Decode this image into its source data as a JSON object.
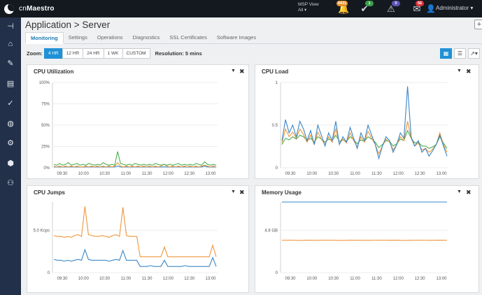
{
  "header": {
    "brand_prefix": "cn",
    "brand_name": "Maestro",
    "msp_view": "MSP View",
    "msp_sub": "All ▾",
    "badges": [
      {
        "icon": "bell-icon",
        "count": "6431",
        "color": "#e8912d"
      },
      {
        "icon": "check-circle-icon",
        "count": "1",
        "color": "#3a9e4a"
      },
      {
        "icon": "alert-circle-icon",
        "count": "0",
        "color": "#5b52b3"
      },
      {
        "icon": "inbox-icon",
        "count": "56",
        "color": "#d9343a"
      }
    ],
    "user": "Administrator ▾"
  },
  "sidebar": {
    "items": [
      {
        "icon": "pin-icon"
      },
      {
        "icon": "home-icon"
      },
      {
        "icon": "wrench-icon"
      },
      {
        "icon": "document-icon"
      },
      {
        "icon": "clipboard-check-icon"
      },
      {
        "icon": "globe-icon"
      },
      {
        "icon": "gear-icon"
      },
      {
        "icon": "cubes-icon"
      },
      {
        "icon": "users-icon"
      }
    ]
  },
  "page": {
    "title": "Application > Server",
    "tabs": [
      "Monitoring",
      "Settings",
      "Operations",
      "Diagnostics",
      "SSL Certificates",
      "Software Images"
    ],
    "active_tab": "Monitoring"
  },
  "zoom": {
    "label": "Zoom:",
    "options": [
      "4 HR",
      "12 HR",
      "24 HR",
      "1 WK",
      "CUSTOM"
    ],
    "active": "4 HR",
    "resolution": "Resolution: 5 mins"
  },
  "chart_data": [
    {
      "type": "line",
      "title": "CPU Utilization",
      "x_ticks": [
        "09:30",
        "10:00",
        "10:30",
        "11:00",
        "11:30",
        "12:00",
        "12:30",
        "13:00"
      ],
      "y_ticks": [
        "100%",
        "75%",
        "50%",
        "25%",
        "0%"
      ],
      "ylim": [
        0,
        100
      ],
      "series": [
        {
          "color": "#4caf50",
          "values": [
            4,
            3,
            5,
            3,
            4,
            6,
            3,
            4,
            5,
            3,
            4,
            3,
            5,
            4,
            3,
            4,
            3,
            6,
            4,
            3,
            4,
            3,
            19,
            5,
            4,
            3,
            4,
            3,
            5,
            4,
            3,
            4,
            3,
            4,
            3,
            5,
            4,
            3,
            4,
            3,
            4,
            3,
            4,
            5,
            3,
            4,
            3,
            4,
            3,
            5,
            4,
            3,
            7,
            4,
            3,
            4,
            3
          ]
        },
        {
          "color": "#f0963c",
          "values": [
            2,
            1,
            2,
            1,
            2,
            1,
            2,
            1,
            2,
            1,
            1,
            2,
            1,
            2,
            1,
            2,
            1,
            2,
            1,
            2,
            1,
            2,
            6,
            2,
            1,
            2,
            1,
            2,
            1,
            2,
            1,
            2,
            1,
            2,
            1,
            2,
            1,
            2,
            4,
            2,
            1,
            2,
            1,
            2,
            1,
            2,
            1,
            2,
            1,
            2,
            1,
            2,
            3,
            2,
            1,
            2,
            1
          ]
        },
        {
          "color": "#3a87c8",
          "values": [
            1,
            1,
            1,
            1,
            1,
            1,
            1,
            1,
            1,
            1,
            1,
            1,
            1,
            1,
            1,
            1,
            1,
            1,
            1,
            1,
            1,
            1,
            2,
            1,
            1,
            1,
            1,
            1,
            1,
            1,
            1,
            1,
            1,
            1,
            1,
            1,
            1,
            1,
            1,
            1,
            1,
            1,
            1,
            1,
            1,
            1,
            1,
            1,
            1,
            1,
            1,
            1,
            2,
            1,
            1,
            1,
            1
          ]
        }
      ]
    },
    {
      "type": "line",
      "title": "CPU Load",
      "x_ticks": [
        "09:30",
        "10:00",
        "10:30",
        "11:00",
        "11:30",
        "12:00",
        "12:30",
        "13:00"
      ],
      "y_ticks": [
        "1",
        "0.5",
        "0"
      ],
      "ylim": [
        0,
        1.1
      ],
      "series": [
        {
          "color": "#3a87c8",
          "values": [
            0.35,
            0.62,
            0.45,
            0.55,
            0.4,
            0.6,
            0.5,
            0.35,
            0.48,
            0.3,
            0.55,
            0.42,
            0.28,
            0.45,
            0.35,
            0.6,
            0.3,
            0.4,
            0.33,
            0.52,
            0.38,
            0.25,
            0.45,
            0.35,
            0.55,
            0.42,
            0.3,
            0.12,
            0.28,
            0.4,
            0.35,
            0.2,
            0.3,
            0.45,
            0.38,
            1.05,
            0.4,
            0.28,
            0.35,
            0.2,
            0.25,
            0.15,
            0.22,
            0.3,
            0.42,
            0.28,
            0.15
          ]
        },
        {
          "color": "#f0963c",
          "values": [
            0.32,
            0.5,
            0.4,
            0.46,
            0.38,
            0.5,
            0.43,
            0.33,
            0.42,
            0.3,
            0.46,
            0.37,
            0.3,
            0.4,
            0.33,
            0.5,
            0.31,
            0.37,
            0.32,
            0.45,
            0.35,
            0.27,
            0.4,
            0.33,
            0.47,
            0.38,
            0.3,
            0.18,
            0.28,
            0.37,
            0.33,
            0.23,
            0.3,
            0.4,
            0.35,
            0.6,
            0.38,
            0.28,
            0.32,
            0.23,
            0.25,
            0.2,
            0.24,
            0.3,
            0.45,
            0.3,
            0.2
          ]
        },
        {
          "color": "#4caf50",
          "values": [
            0.3,
            0.38,
            0.36,
            0.4,
            0.37,
            0.42,
            0.4,
            0.35,
            0.38,
            0.33,
            0.4,
            0.37,
            0.33,
            0.37,
            0.35,
            0.42,
            0.34,
            0.36,
            0.34,
            0.4,
            0.36,
            0.31,
            0.36,
            0.34,
            0.4,
            0.37,
            0.33,
            0.26,
            0.3,
            0.35,
            0.34,
            0.28,
            0.31,
            0.37,
            0.35,
            0.48,
            0.38,
            0.32,
            0.33,
            0.28,
            0.28,
            0.25,
            0.27,
            0.3,
            0.4,
            0.32,
            0.25
          ]
        }
      ]
    },
    {
      "type": "line",
      "title": "CPU Jumps",
      "x_ticks": [
        "09:30",
        "10:00",
        "10:30",
        "11:00",
        "11:30",
        "12:00",
        "12:30",
        "13:00"
      ],
      "y_ticks": [
        "5.0 Kcps",
        "0"
      ],
      "ylim": [
        0,
        8
      ],
      "series": [
        {
          "color": "#f0963c",
          "values": [
            4.2,
            4.1,
            4.1,
            4.0,
            4.1,
            4.0,
            4.2,
            4.3,
            4.1,
            7.5,
            4.3,
            4.2,
            4.1,
            4.1,
            4.2,
            4.1,
            4.0,
            4.2,
            4.3,
            4.1,
            7.4,
            4.2,
            4.1,
            4.1,
            4.1,
            1.8,
            1.8,
            1.8,
            1.8,
            1.8,
            1.8,
            1.8,
            2.9,
            1.8,
            1.8,
            1.8,
            1.8,
            1.8,
            1.8,
            1.8,
            1.8,
            1.8,
            1.8,
            1.8,
            1.8,
            1.8,
            3.1,
            1.8
          ]
        },
        {
          "color": "#3a87c8",
          "values": [
            1.5,
            1.4,
            1.4,
            1.3,
            1.4,
            1.3,
            1.4,
            1.5,
            1.4,
            2.6,
            1.5,
            1.4,
            1.4,
            1.4,
            1.4,
            1.4,
            1.3,
            1.4,
            1.5,
            1.4,
            2.5,
            1.4,
            1.4,
            1.4,
            1.4,
            0.7,
            0.7,
            0.7,
            0.8,
            0.7,
            0.7,
            0.7,
            1.4,
            0.7,
            0.7,
            0.7,
            0.7,
            0.7,
            0.8,
            0.7,
            0.7,
            0.7,
            0.7,
            0.7,
            0.7,
            0.7,
            1.7,
            0.7
          ]
        }
      ]
    },
    {
      "type": "line",
      "title": "Memory Usage",
      "x_ticks": [
        "09:30",
        "10:00",
        "10:30",
        "11:00",
        "11:30",
        "12:00",
        "12:30",
        "13:00"
      ],
      "y_ticks": [
        "4.8 GB",
        "0"
      ],
      "ylim": [
        0,
        9.6
      ],
      "series": [
        {
          "color": "#3a87c8",
          "values": [
            9.6,
            9.6
          ]
        },
        {
          "color": "#f0963c",
          "values": [
            4.4,
            4.42,
            4.38,
            4.41,
            4.39,
            4.42,
            4.4,
            4.38,
            4.41,
            4.4,
            4.39,
            4.42,
            4.4,
            4.41,
            4.38,
            4.4,
            4.42,
            4.39,
            4.41,
            4.4
          ]
        }
      ]
    }
  ]
}
